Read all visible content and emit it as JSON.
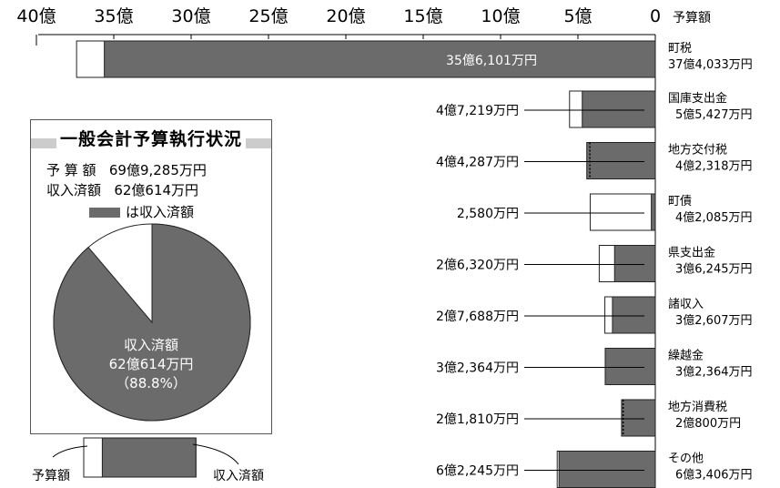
{
  "chart_data": {
    "type": "bar",
    "orientation": "horizontal",
    "x_ticks": [
      "40億",
      "35億",
      "30億",
      "25億",
      "20億",
      "15億",
      "10億",
      "5億",
      "0"
    ],
    "x_title": "予算額",
    "xlim": [
      0,
      40
    ],
    "unit_note": "億円",
    "categories": [
      {
        "name": "町税",
        "budget": "37億4,033万円",
        "budget_value": 37.4033,
        "income": "35億6,101万円",
        "income_value": 35.6101
      },
      {
        "name": "国庫支出金",
        "budget": "5億5,427万円",
        "budget_value": 5.5427,
        "income": "4億7,219万円",
        "income_value": 4.7219
      },
      {
        "name": "地方交付税",
        "budget": "4億2,318万円",
        "budget_value": 4.2318,
        "income": "4億4,287万円",
        "income_value": 4.4287
      },
      {
        "name": "町債",
        "budget": "4億2,085万円",
        "budget_value": 4.2085,
        "income": "2,580万円",
        "income_value": 0.258
      },
      {
        "name": "県支出金",
        "budget": "3億6,245万円",
        "budget_value": 3.6245,
        "income": "2億6,320万円",
        "income_value": 2.632
      },
      {
        "name": "諸収入",
        "budget": "3億2,607万円",
        "budget_value": 3.2607,
        "income": "2億7,688万円",
        "income_value": 2.7688
      },
      {
        "name": "繰越金",
        "budget": "3億2,364万円",
        "budget_value": 3.2364,
        "income": "3億2,364万円",
        "income_value": 3.2364
      },
      {
        "name": "地方消費税",
        "budget": "2億800万円",
        "budget_value": 2.08,
        "income": "2億1,810万円",
        "income_value": 2.181
      },
      {
        "name": "その他",
        "budget": "6億3,406万円",
        "budget_value": 6.3406,
        "income": "6億2,245万円",
        "income_value": 6.2245
      }
    ],
    "legend_left": "予算額",
    "legend_right": "収入済額",
    "legend_budget": 2.4,
    "legend_income": 12.1,
    "colors": {
      "income": "#6b6b6b",
      "budget": "#ffffff",
      "stroke": "#222222"
    }
  },
  "pie": {
    "title": "一般会計予算執行状況",
    "budget_label": "予 算 額",
    "budget_value": "69億9,285万円",
    "income_label": "収入済額",
    "income_value": "62億614万円",
    "key_text": "は収入済額",
    "center_label": "収入済額",
    "center_value": "62億614万円",
    "center_percent": "（88.8%）",
    "income_fraction": 0.888
  }
}
